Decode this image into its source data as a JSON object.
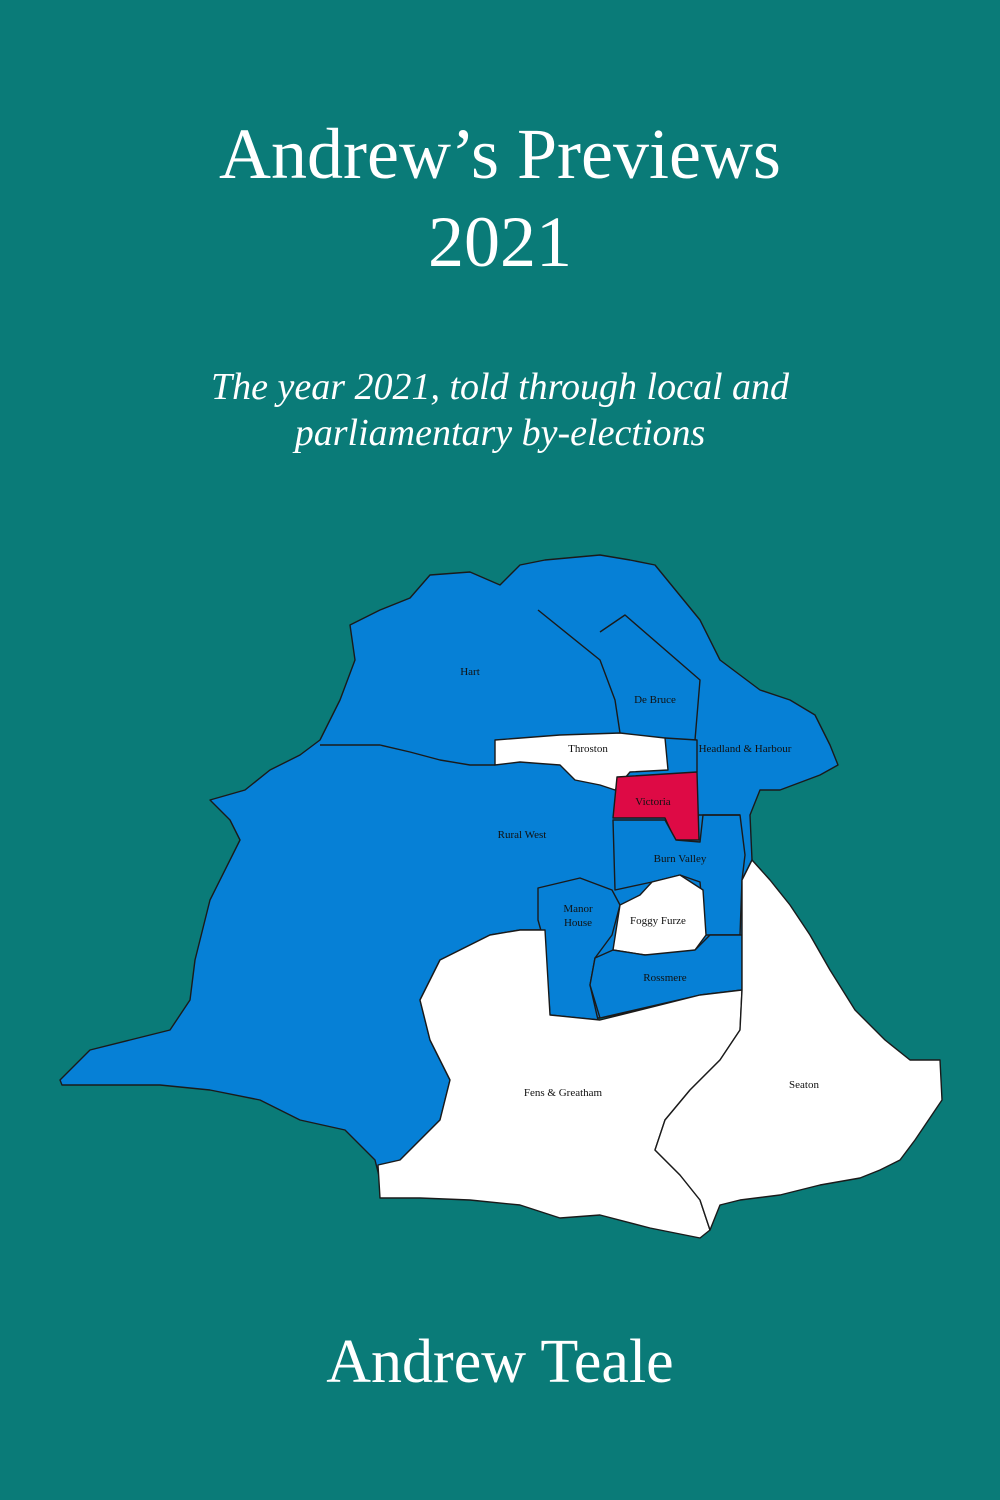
{
  "cover": {
    "title_line1": "Andrew’s Previews",
    "title_line2": "2021",
    "subtitle_line1": "The year 2021, told through local and",
    "subtitle_line2": "parliamentary by-elections",
    "author": "Andrew Teale",
    "background_color": "#0a7b78"
  },
  "map": {
    "colors": {
      "blue": "#0680d6",
      "white": "#ffffff",
      "red": "#de0a45"
    },
    "wards": {
      "hart": "Hart",
      "de_bruce": "De Bruce",
      "throston": "Throston",
      "headland_harbour": "Headland & Harbour",
      "victoria": "Victoria",
      "rural_west": "Rural West",
      "burn_valley": "Burn Valley",
      "manor_house_1": "Manor",
      "manor_house_2": "House",
      "foggy_furze": "Foggy Furze",
      "rossmere": "Rossmere",
      "fens_greatham": "Fens & Greatham",
      "seaton": "Seaton"
    }
  }
}
